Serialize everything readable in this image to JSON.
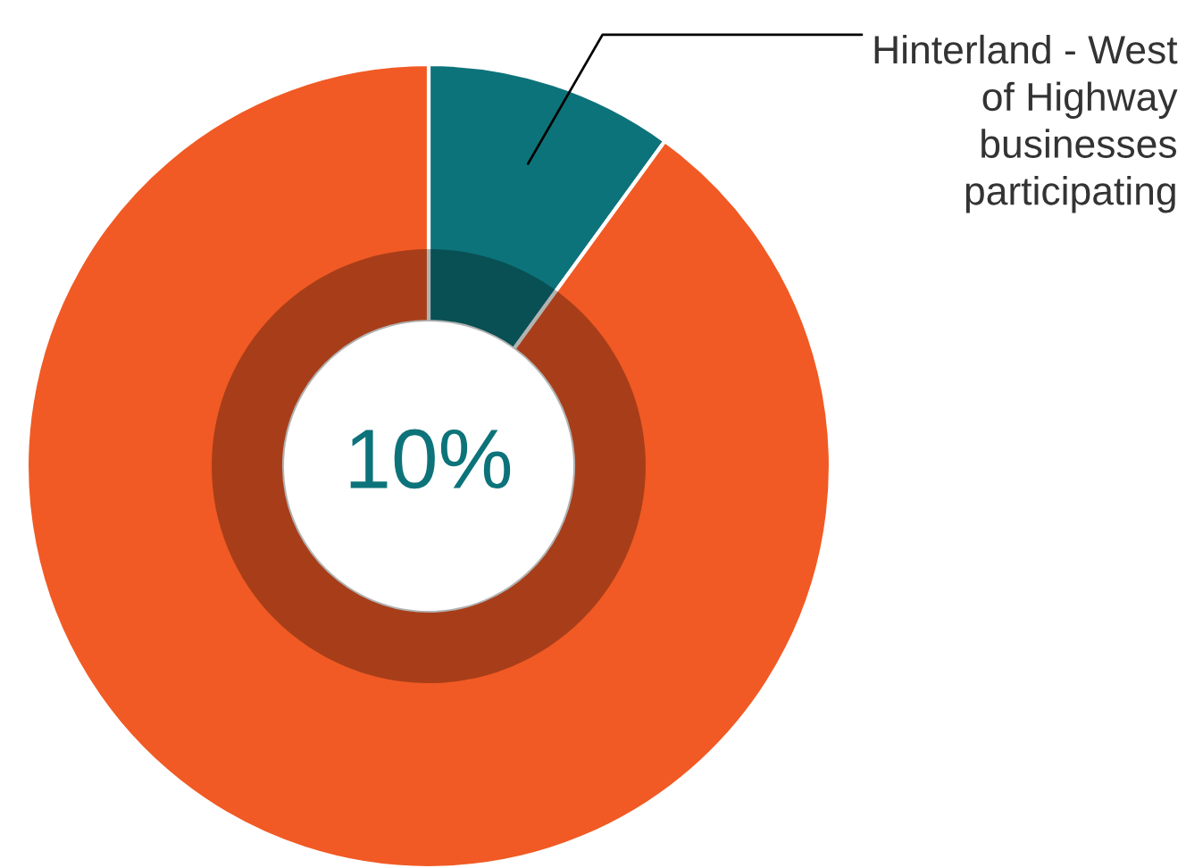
{
  "chart_data": {
    "type": "donut",
    "categories": [
      "Hinterland - West of Highway businesses participating",
      null
    ],
    "values": [
      10,
      90
    ],
    "colors": [
      "#0d737a",
      "#f15a24"
    ],
    "annotations": [
      "10%"
    ]
  }
}
